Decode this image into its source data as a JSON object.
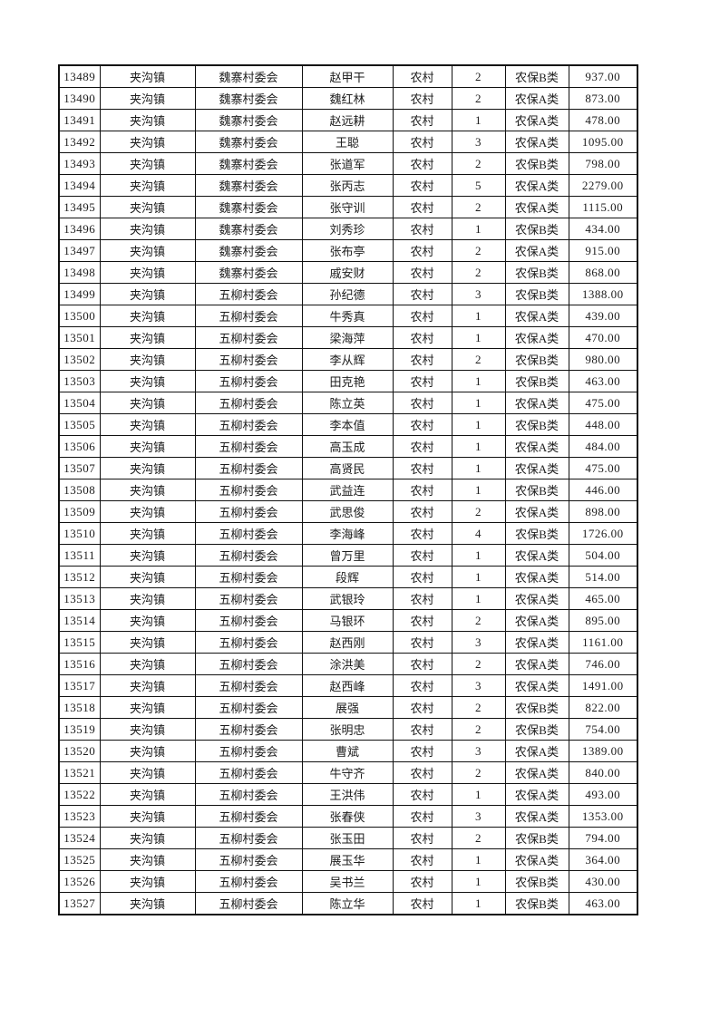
{
  "page": {
    "background": "#ffffff",
    "border_color": "#111111",
    "text_color": "#1c1c1c"
  },
  "table": {
    "rows": [
      [
        "13489",
        "夹沟镇",
        "魏寨村委会",
        "赵甲干",
        "农村",
        "2",
        "农保B类",
        "937.00"
      ],
      [
        "13490",
        "夹沟镇",
        "魏寨村委会",
        "魏红林",
        "农村",
        "2",
        "农保A类",
        "873.00"
      ],
      [
        "13491",
        "夹沟镇",
        "魏寨村委会",
        "赵远耕",
        "农村",
        "1",
        "农保A类",
        "478.00"
      ],
      [
        "13492",
        "夹沟镇",
        "魏寨村委会",
        "王聪",
        "农村",
        "3",
        "农保A类",
        "1095.00"
      ],
      [
        "13493",
        "夹沟镇",
        "魏寨村委会",
        "张道军",
        "农村",
        "2",
        "农保B类",
        "798.00"
      ],
      [
        "13494",
        "夹沟镇",
        "魏寨村委会",
        "张丙志",
        "农村",
        "5",
        "农保A类",
        "2279.00"
      ],
      [
        "13495",
        "夹沟镇",
        "魏寨村委会",
        "张守训",
        "农村",
        "2",
        "农保A类",
        "1115.00"
      ],
      [
        "13496",
        "夹沟镇",
        "魏寨村委会",
        "刘秀珍",
        "农村",
        "1",
        "农保B类",
        "434.00"
      ],
      [
        "13497",
        "夹沟镇",
        "魏寨村委会",
        "张布亭",
        "农村",
        "2",
        "农保A类",
        "915.00"
      ],
      [
        "13498",
        "夹沟镇",
        "魏寨村委会",
        "戚安财",
        "农村",
        "2",
        "农保B类",
        "868.00"
      ],
      [
        "13499",
        "夹沟镇",
        "五柳村委会",
        "孙纪德",
        "农村",
        "3",
        "农保B类",
        "1388.00"
      ],
      [
        "13500",
        "夹沟镇",
        "五柳村委会",
        "牛秀真",
        "农村",
        "1",
        "农保A类",
        "439.00"
      ],
      [
        "13501",
        "夹沟镇",
        "五柳村委会",
        "梁海萍",
        "农村",
        "1",
        "农保A类",
        "470.00"
      ],
      [
        "13502",
        "夹沟镇",
        "五柳村委会",
        "李从辉",
        "农村",
        "2",
        "农保B类",
        "980.00"
      ],
      [
        "13503",
        "夹沟镇",
        "五柳村委会",
        "田克艳",
        "农村",
        "1",
        "农保B类",
        "463.00"
      ],
      [
        "13504",
        "夹沟镇",
        "五柳村委会",
        "陈立英",
        "农村",
        "1",
        "农保A类",
        "475.00"
      ],
      [
        "13505",
        "夹沟镇",
        "五柳村委会",
        "李本值",
        "农村",
        "1",
        "农保B类",
        "448.00"
      ],
      [
        "13506",
        "夹沟镇",
        "五柳村委会",
        "高玉成",
        "农村",
        "1",
        "农保A类",
        "484.00"
      ],
      [
        "13507",
        "夹沟镇",
        "五柳村委会",
        "高贤民",
        "农村",
        "1",
        "农保A类",
        "475.00"
      ],
      [
        "13508",
        "夹沟镇",
        "五柳村委会",
        "武益连",
        "农村",
        "1",
        "农保B类",
        "446.00"
      ],
      [
        "13509",
        "夹沟镇",
        "五柳村委会",
        "武思俊",
        "农村",
        "2",
        "农保A类",
        "898.00"
      ],
      [
        "13510",
        "夹沟镇",
        "五柳村委会",
        "李海峰",
        "农村",
        "4",
        "农保B类",
        "1726.00"
      ],
      [
        "13511",
        "夹沟镇",
        "五柳村委会",
        "曾万里",
        "农村",
        "1",
        "农保A类",
        "504.00"
      ],
      [
        "13512",
        "夹沟镇",
        "五柳村委会",
        "段辉",
        "农村",
        "1",
        "农保A类",
        "514.00"
      ],
      [
        "13513",
        "夹沟镇",
        "五柳村委会",
        "武银玲",
        "农村",
        "1",
        "农保A类",
        "465.00"
      ],
      [
        "13514",
        "夹沟镇",
        "五柳村委会",
        "马银环",
        "农村",
        "2",
        "农保A类",
        "895.00"
      ],
      [
        "13515",
        "夹沟镇",
        "五柳村委会",
        "赵西刚",
        "农村",
        "3",
        "农保A类",
        "1161.00"
      ],
      [
        "13516",
        "夹沟镇",
        "五柳村委会",
        "涂洪美",
        "农村",
        "2",
        "农保A类",
        "746.00"
      ],
      [
        "13517",
        "夹沟镇",
        "五柳村委会",
        "赵西峰",
        "农村",
        "3",
        "农保A类",
        "1491.00"
      ],
      [
        "13518",
        "夹沟镇",
        "五柳村委会",
        "展强",
        "农村",
        "2",
        "农保B类",
        "822.00"
      ],
      [
        "13519",
        "夹沟镇",
        "五柳村委会",
        "张明忠",
        "农村",
        "2",
        "农保B类",
        "754.00"
      ],
      [
        "13520",
        "夹沟镇",
        "五柳村委会",
        "曹斌",
        "农村",
        "3",
        "农保A类",
        "1389.00"
      ],
      [
        "13521",
        "夹沟镇",
        "五柳村委会",
        "牛守齐",
        "农村",
        "2",
        "农保A类",
        "840.00"
      ],
      [
        "13522",
        "夹沟镇",
        "五柳村委会",
        "王洪伟",
        "农村",
        "1",
        "农保A类",
        "493.00"
      ],
      [
        "13523",
        "夹沟镇",
        "五柳村委会",
        "张春侠",
        "农村",
        "3",
        "农保A类",
        "1353.00"
      ],
      [
        "13524",
        "夹沟镇",
        "五柳村委会",
        "张玉田",
        "农村",
        "2",
        "农保B类",
        "794.00"
      ],
      [
        "13525",
        "夹沟镇",
        "五柳村委会",
        "展玉华",
        "农村",
        "1",
        "农保A类",
        "364.00"
      ],
      [
        "13526",
        "夹沟镇",
        "五柳村委会",
        "吴书兰",
        "农村",
        "1",
        "农保B类",
        "430.00"
      ],
      [
        "13527",
        "夹沟镇",
        "五柳村委会",
        "陈立华",
        "农村",
        "1",
        "农保B类",
        "463.00"
      ]
    ]
  }
}
